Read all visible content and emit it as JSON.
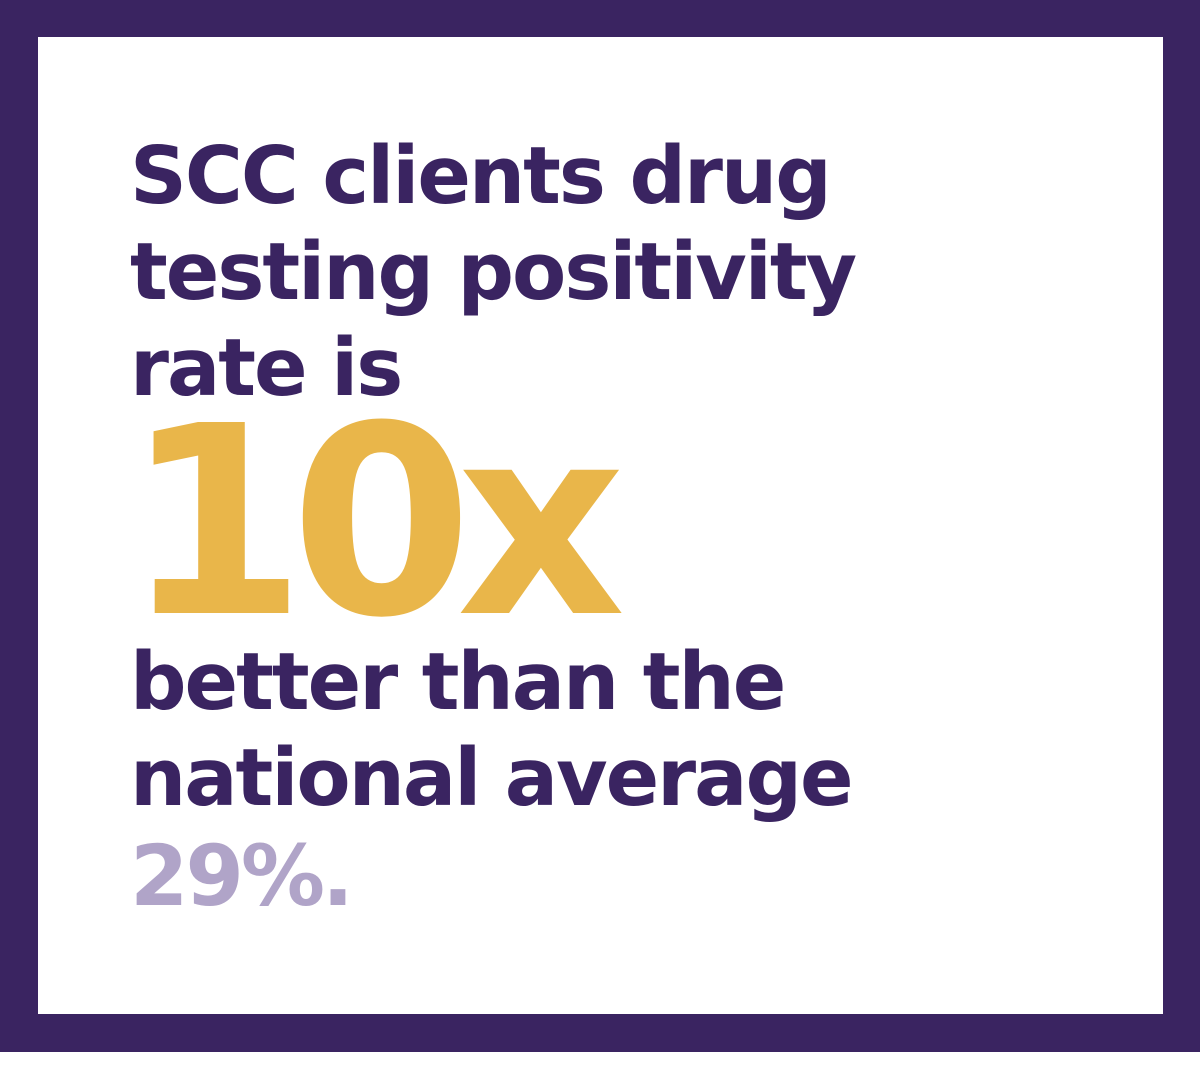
{
  "statement": {
    "line1": "SCC clients drug",
    "line2": "testing positivity",
    "line3": "rate is",
    "highlight": "10x",
    "line4": "better than the",
    "line5": "national average",
    "figure": "29%."
  },
  "colors": {
    "frame": "#3a2461",
    "text": "#3a2461",
    "highlight": "#e9b64a",
    "figure": "#b0a4c8",
    "background": "#ffffff"
  }
}
